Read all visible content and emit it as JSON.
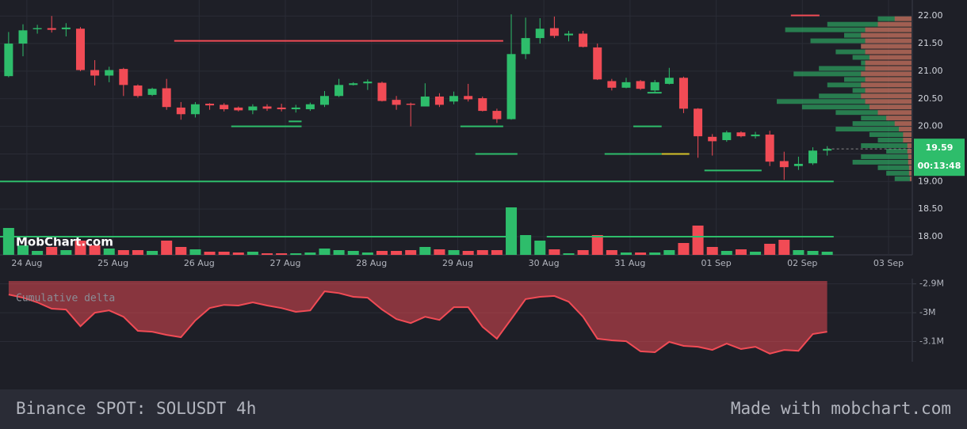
{
  "chart_data": [
    {
      "type": "candlestick",
      "watermark": "MobChart.com",
      "up_color": "#2ebd6b",
      "down_color": "#f14b55",
      "xlim": [
        -0.6,
        62.87
      ],
      "xticks": [
        {
          "value": 1.27,
          "label": "24 Aug"
        },
        {
          "value": 7.27,
          "label": "25 Aug"
        },
        {
          "value": 13.27,
          "label": "26 Aug"
        },
        {
          "value": 19.27,
          "label": "27 Aug"
        },
        {
          "value": 25.27,
          "label": "28 Aug"
        },
        {
          "value": 31.27,
          "label": "29 Aug"
        },
        {
          "value": 37.27,
          "label": "30 Aug"
        },
        {
          "value": 43.27,
          "label": "31 Aug"
        },
        {
          "value": 49.27,
          "label": "01 Sep"
        },
        {
          "value": 55.27,
          "label": "02 Sep"
        },
        {
          "value": 61.27,
          "label": "03 Sep"
        }
      ],
      "ylim": [
        17.67,
        22.29
      ],
      "yticks": [
        {
          "value": 22,
          "label": "22.00"
        },
        {
          "value": 21.5,
          "label": "21.50"
        },
        {
          "value": 21,
          "label": "21.00"
        },
        {
          "value": 20.5,
          "label": "20.50"
        },
        {
          "value": 20,
          "label": "20.00"
        },
        {
          "value": 19.5,
          "label": "19.50"
        },
        {
          "value": 19,
          "label": "19.00"
        },
        {
          "value": 18.5,
          "label": "18.50"
        },
        {
          "value": 18,
          "label": "18.00"
        }
      ],
      "grid": true,
      "open": [
        20.91,
        21.5,
        21.76,
        21.78,
        21.76,
        21.77,
        21.02,
        20.92,
        21.04,
        20.74,
        20.57,
        20.69,
        20.34,
        20.22,
        20.41,
        20.39,
        20.34,
        20.29,
        20.36,
        20.34,
        20.31,
        20.31,
        20.39,
        20.55,
        20.75,
        20.78,
        20.79,
        20.48,
        20.41,
        20.36,
        20.54,
        20.45,
        20.55,
        20.51,
        20.28,
        20.13,
        21.31,
        21.6,
        21.78,
        21.65,
        21.68,
        21.43,
        20.82,
        20.7,
        20.82,
        20.65,
        20.77,
        20.88,
        20.32,
        19.81,
        19.75,
        19.89,
        19.82,
        19.85,
        19.37,
        19.28,
        19.33,
        19.56
      ],
      "high": [
        21.71,
        21.85,
        21.84,
        22.0,
        21.87,
        21.8,
        21.2,
        21.08,
        21.06,
        20.76,
        20.7,
        20.86,
        20.44,
        20.44,
        20.42,
        20.42,
        20.36,
        20.4,
        20.4,
        20.41,
        20.39,
        20.43,
        20.64,
        20.86,
        20.8,
        20.85,
        20.81,
        20.55,
        20.43,
        20.78,
        20.6,
        20.63,
        20.77,
        20.54,
        20.32,
        22.03,
        21.97,
        21.96,
        21.99,
        21.73,
        21.73,
        21.5,
        20.86,
        20.88,
        20.84,
        20.84,
        21.06,
        20.9,
        20.33,
        19.86,
        19.92,
        19.91,
        19.9,
        19.92,
        19.54,
        19.45,
        19.62,
        19.64
      ],
      "low": [
        20.89,
        21.27,
        21.68,
        21.7,
        21.63,
        21.0,
        20.74,
        20.8,
        20.55,
        20.52,
        20.55,
        20.3,
        20.12,
        20.16,
        20.3,
        20.27,
        20.27,
        20.22,
        20.28,
        20.27,
        20.25,
        20.28,
        20.35,
        20.53,
        20.74,
        20.66,
        20.45,
        20.3,
        20.0,
        20.36,
        20.35,
        20.4,
        20.45,
        20.27,
        20.06,
        20.12,
        21.22,
        21.5,
        21.6,
        21.54,
        21.43,
        20.84,
        20.65,
        20.69,
        20.66,
        20.62,
        20.76,
        20.24,
        19.43,
        19.47,
        19.72,
        19.8,
        19.78,
        19.28,
        19.03,
        19.21,
        19.3,
        19.47
      ],
      "close": [
        21.5,
        21.74,
        21.78,
        21.75,
        21.79,
        21.02,
        20.92,
        21.02,
        20.75,
        20.55,
        20.68,
        20.35,
        20.22,
        20.4,
        20.38,
        20.31,
        20.29,
        20.36,
        20.32,
        20.31,
        20.34,
        20.4,
        20.55,
        20.75,
        20.78,
        20.81,
        20.46,
        20.39,
        20.39,
        20.54,
        20.39,
        20.55,
        20.49,
        20.28,
        20.13,
        21.31,
        21.6,
        21.77,
        21.64,
        21.68,
        21.44,
        20.85,
        20.7,
        20.8,
        20.68,
        20.8,
        20.88,
        20.32,
        19.82,
        19.73,
        19.89,
        19.82,
        19.85,
        19.36,
        19.26,
        19.32,
        19.56,
        19.59
      ],
      "volume": [
        34,
        12,
        5,
        10,
        6,
        18,
        12,
        8,
        6,
        6,
        5,
        18,
        10,
        7,
        4,
        4,
        3,
        4,
        2,
        2,
        2,
        3,
        8,
        6,
        5,
        3,
        5,
        5,
        6,
        10,
        7,
        6,
        5,
        6,
        6,
        60,
        25,
        18,
        7,
        2,
        6,
        25,
        6,
        3,
        3,
        3,
        6,
        15,
        37,
        10,
        5,
        7,
        4,
        14,
        19,
        6,
        5,
        4
      ],
      "levels": [
        {
          "price": 21.55,
          "from": 11.53,
          "to": 34.44,
          "color": "#f14b55"
        },
        {
          "price": 22.01,
          "from": 54.47,
          "to": 56.46,
          "color": "#f14b55"
        },
        {
          "price": 19,
          "from": -0.6,
          "to": 57.45,
          "color": "#2ebd6b"
        },
        {
          "price": 18,
          "from": -0.6,
          "to": 34.71,
          "color": "#2ebd6b"
        },
        {
          "price": 18,
          "from": 37.47,
          "to": 57.45,
          "color": "#2ebd6b"
        },
        {
          "price": 20,
          "from": 15.5,
          "to": 20.4,
          "color": "#2ebd6b"
        },
        {
          "price": 20.09,
          "from": 19.5,
          "to": 20.4,
          "color": "#2ebd6b"
        },
        {
          "price": 20,
          "from": 31.46,
          "to": 34.44,
          "color": "#2ebd6b"
        },
        {
          "price": 19.5,
          "from": 32.5,
          "to": 35.43,
          "color": "#2ebd6b"
        },
        {
          "price": 19.5,
          "from": 41.5,
          "to": 45.47,
          "color": "#2ebd6b"
        },
        {
          "price": 19.5,
          "from": 45.47,
          "to": 47.4,
          "color": "#d4c22a"
        },
        {
          "price": 20,
          "from": 43.5,
          "to": 45.47,
          "color": "#2ebd6b"
        },
        {
          "price": 20.61,
          "from": 44.48,
          "to": 45.47,
          "color": "#2ebd6b"
        },
        {
          "price": 19.2,
          "from": 48.45,
          "to": 52.43,
          "color": "#2ebd6b"
        }
      ],
      "depth": {
        "prices": [
          21.95,
          21.85,
          21.75,
          21.65,
          21.55,
          21.45,
          21.35,
          21.25,
          21.15,
          21.05,
          20.95,
          20.85,
          20.75,
          20.65,
          20.55,
          20.45,
          20.35,
          20.25,
          20.15,
          20.05,
          19.95,
          19.85,
          19.75,
          19.65,
          19.55,
          19.45,
          19.35,
          19.25,
          19.15,
          19.05
        ],
        "bids": [
          40,
          100,
          150,
          80,
          120,
          60,
          90,
          70,
          60,
          110,
          140,
          80,
          100,
          70,
          110,
          160,
          130,
          90,
          60,
          70,
          90,
          50,
          40,
          60,
          30,
          60,
          70,
          40,
          30,
          20
        ],
        "asks": [
          20,
          40,
          55,
          60,
          55,
          60,
          55,
          50,
          55,
          55,
          60,
          55,
          60,
          55,
          60,
          55,
          50,
          40,
          30,
          20,
          15,
          10,
          10,
          5,
          5,
          4,
          4,
          3,
          3,
          2
        ]
      },
      "last_price": 19.59,
      "last_price_color": "#2ebd6b",
      "countdown": "00:13:48"
    },
    {
      "type": "area",
      "title": "Cumulative delta",
      "color": "#f14b55",
      "values": [
        -2937000,
        -2948000,
        -2964000,
        -2986000,
        -2989000,
        -3047000,
        -3000000,
        -2992000,
        -3014000,
        -3063000,
        -3066000,
        -3077000,
        -3085000,
        -3027000,
        -2984000,
        -2973000,
        -2975000,
        -2964000,
        -2975000,
        -2984000,
        -2997000,
        -2992000,
        -2926000,
        -2932000,
        -2945000,
        -2948000,
        -2989000,
        -3022000,
        -3036000,
        -3014000,
        -3025000,
        -2981000,
        -2981000,
        -3049000,
        -3090000,
        -3022000,
        -2953000,
        -2945000,
        -2942000,
        -2962000,
        -3014000,
        -3090000,
        -3096000,
        -3099000,
        -3134000,
        -3137000,
        -3101000,
        -3115000,
        -3118000,
        -3129000,
        -3107000,
        -3126000,
        -3118000,
        -3142000,
        -3129000,
        -3132000,
        -3074000,
        -3066000
      ],
      "ylim": [
        -3170000,
        -2890000
      ],
      "yticks": [
        {
          "value": -2900000,
          "label": "-2.9M"
        },
        {
          "value": -3000000,
          "label": "-3M"
        },
        {
          "value": -3100000,
          "label": "-3.1M"
        }
      ],
      "grid": true
    }
  ],
  "footer": {
    "left": "Binance SPOT: SOLUSDT 4h",
    "right": "Made with mobchart.com"
  }
}
